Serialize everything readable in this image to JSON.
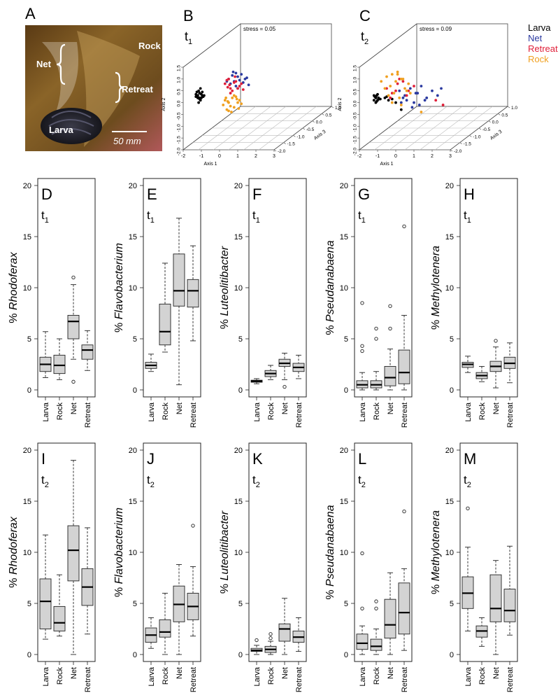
{
  "panel_a": {
    "letter": "A",
    "labels": {
      "net": "Net",
      "rock": "Rock",
      "retreat": "Retreat",
      "larva": "Larva",
      "scale": "50 mm"
    }
  },
  "colors": {
    "Larva": "#000000",
    "Net": "#2b3aa0",
    "Retreat": "#e0203a",
    "Rock": "#f0a020"
  },
  "legend": [
    "Larva",
    "Net",
    "Retreat",
    "Rock"
  ],
  "chart_data": [
    {
      "type": "scatter",
      "panel": "B",
      "time": "t1",
      "annotation": "stress = 0.05",
      "xlabel": "Axis 1",
      "ylabel": "Axis 2",
      "zlabel": "Axis 3",
      "xlim": [
        -2,
        3
      ],
      "ylim": [
        -2,
        1.5
      ],
      "zlim": [
        -2,
        1
      ],
      "xticks": [
        "-2",
        "-1",
        "0",
        "1",
        "2",
        "3"
      ],
      "yticks": [
        "-2.0",
        "-1.5",
        "-1.0",
        "-0.5",
        "0.0",
        "0.5",
        "1.0",
        "1.5"
      ],
      "zticks": [
        "-2.0",
        "-1.5",
        "-1.0",
        "-0.5",
        "0.0",
        "0.5",
        "1.0"
      ],
      "series": [
        {
          "name": "Larva",
          "x": [
            -1.2,
            -1.1,
            -1.0,
            -1.3,
            -0.9,
            -1.15,
            -1.05,
            -1.25,
            -0.95,
            -1.1,
            -1.2,
            -1.0,
            -1.3,
            -1.1,
            -0.85,
            -1.05,
            -1.15,
            -1.2,
            -0.95,
            -1.1
          ],
          "y": [
            0.3,
            0.4,
            0.2,
            0.35,
            0.25,
            0.5,
            0.1,
            0.45,
            0.3,
            0.15,
            0.2,
            0.35,
            0.25,
            0.4,
            0.3,
            0.6,
            0.0,
            0.3,
            0.45,
            0.2
          ]
        },
        {
          "name": "Net",
          "x": [
            0.5,
            0.8,
            1.0,
            1.2,
            0.6,
            0.9,
            1.4,
            1.1,
            0.7,
            1.3,
            0.4,
            1.5,
            0.9,
            1.0,
            1.6,
            0.75
          ],
          "y": [
            1.0,
            0.9,
            1.1,
            1.2,
            0.8,
            0.7,
            1.0,
            0.95,
            1.15,
            0.85,
            0.9,
            1.05,
            1.25,
            0.6,
            0.75,
            1.3
          ]
        },
        {
          "name": "Retreat",
          "x": [
            0.3,
            0.6,
            0.9,
            0.5,
            0.7,
            1.1,
            0.4,
            0.8,
            1.2,
            0.6,
            1.0,
            0.45,
            0.85,
            1.3,
            0.55
          ],
          "y": [
            0.8,
            0.6,
            0.9,
            1.0,
            0.5,
            0.7,
            0.95,
            0.85,
            0.8,
            0.4,
            0.6,
            0.65,
            1.1,
            0.55,
            0.75
          ]
        },
        {
          "name": "Rock",
          "x": [
            0.2,
            0.5,
            0.8,
            1.1,
            0.4,
            0.7,
            1.0,
            0.3,
            0.6,
            0.9,
            1.2,
            0.5,
            0.8,
            0.35,
            1.05,
            0.65,
            0.95,
            0.45
          ],
          "y": [
            -0.1,
            0.0,
            -0.2,
            0.1,
            -0.3,
            0.2,
            0.0,
            0.1,
            -0.15,
            0.25,
            -0.05,
            -0.35,
            0.3,
            0.2,
            -0.25,
            -0.4,
            0.15,
            0.05
          ]
        }
      ]
    },
    {
      "type": "scatter",
      "panel": "C",
      "time": "t2",
      "annotation": "stress = 0.09",
      "xlabel": "Axis 1",
      "ylabel": "Axis 2",
      "zlabel": "Axis 3",
      "xlim": [
        -2,
        3
      ],
      "ylim": [
        -2,
        1.5
      ],
      "zlim": [
        -2,
        1
      ],
      "xticks": [
        "-2",
        "-1",
        "0",
        "1",
        "2",
        "3"
      ],
      "yticks": [
        "-2.0",
        "-1.5",
        "-1.0",
        "-0.5",
        "0.0",
        "0.5",
        "1.0",
        "1.5"
      ],
      "zticks": [
        "-2.0",
        "-1.5",
        "-1.0",
        "-0.5",
        "0.0",
        "0.5",
        "1.0"
      ],
      "series": [
        {
          "name": "Larva",
          "x": [
            -1.1,
            -1.0,
            -1.2,
            -0.9,
            -1.05,
            -1.15,
            -0.95,
            -1.1,
            -1.0,
            -1.2,
            -0.85,
            -1.05,
            -0.6,
            -0.4,
            -0.2,
            0.0,
            0.3,
            -0.5
          ],
          "y": [
            0.2,
            0.1,
            0.3,
            0.15,
            0.05,
            0.25,
            0.2,
            0.0,
            0.35,
            0.1,
            0.15,
            0.3,
            0.2,
            0.1,
            0.15,
            0.0,
            -0.3,
            0.25
          ]
        },
        {
          "name": "Net",
          "x": [
            0.2,
            0.5,
            0.8,
            1.1,
            1.4,
            1.7,
            2.0,
            2.3,
            0.6,
            1.0,
            1.3,
            0.4,
            0.9,
            1.6,
            0.3,
            1.2,
            2.5
          ],
          "y": [
            0.5,
            0.3,
            0.6,
            0.4,
            0.7,
            0.2,
            0.5,
            0.3,
            0.1,
            0.0,
            -0.1,
            0.2,
            -0.2,
            0.1,
            0.0,
            0.4,
            0.6
          ]
        },
        {
          "name": "Retreat",
          "x": [
            -0.5,
            -0.2,
            0.1,
            0.4,
            0.7,
            1.0,
            -0.3,
            0.2,
            0.6,
            2.2,
            2.6,
            0.0
          ],
          "y": [
            0.6,
            0.4,
            0.8,
            0.9,
            0.5,
            0.7,
            0.2,
            1.0,
            0.3,
            0.1,
            -0.1,
            0.5
          ]
        },
        {
          "name": "Rock",
          "x": [
            -0.8,
            -0.5,
            -0.2,
            0.1,
            0.4,
            0.7,
            -0.6,
            -0.3,
            0.0,
            0.3,
            0.6,
            -0.4,
            -0.1,
            0.2,
            0.5,
            0.8,
            0.1,
            -0.2,
            0.3,
            1.4
          ],
          "y": [
            0.9,
            1.1,
            1.2,
            1.3,
            1.0,
            0.8,
            0.6,
            0.7,
            0.9,
            1.0,
            0.5,
            0.3,
            0.4,
            0.2,
            0.6,
            0.4,
            1.2,
            0.0,
            -0.1,
            -0.4
          ]
        }
      ]
    },
    {
      "type": "box",
      "panel": "D",
      "time": "t1",
      "ylabel": "Rhodoferax",
      "ylim": [
        0,
        20
      ],
      "yticks": [
        0,
        5,
        10,
        15,
        20
      ],
      "categories": [
        "Larva",
        "Rock",
        "Net",
        "Retreat"
      ],
      "boxes": [
        {
          "lw": 1.2,
          "q1": 1.8,
          "med": 2.5,
          "q3": 3.2,
          "uw": 5.7,
          "out": []
        },
        {
          "lw": 1.0,
          "q1": 1.6,
          "med": 2.4,
          "q3": 3.4,
          "uw": 5.0,
          "out": []
        },
        {
          "lw": 3.0,
          "q1": 5.0,
          "med": 6.7,
          "q3": 7.3,
          "uw": 10.3,
          "out": [
            11.0,
            0.8
          ]
        },
        {
          "lw": 1.9,
          "q1": 3.0,
          "med": 3.9,
          "q3": 4.4,
          "uw": 5.8,
          "out": []
        }
      ]
    },
    {
      "type": "box",
      "panel": "E",
      "time": "t1",
      "ylabel": "Flavobacterium",
      "ylim": [
        0,
        20
      ],
      "yticks": [
        0,
        5,
        10,
        15,
        20
      ],
      "categories": [
        "Larva",
        "Rock",
        "Net",
        "Retreat"
      ],
      "boxes": [
        {
          "lw": 1.8,
          "q1": 2.1,
          "med": 2.4,
          "q3": 2.7,
          "uw": 3.5,
          "out": []
        },
        {
          "lw": 3.7,
          "q1": 4.4,
          "med": 5.7,
          "q3": 8.4,
          "uw": 12.4,
          "out": []
        },
        {
          "lw": 0.5,
          "q1": 8.2,
          "med": 9.7,
          "q3": 13.3,
          "uw": 16.8,
          "out": []
        },
        {
          "lw": 4.8,
          "q1": 8.1,
          "med": 9.7,
          "q3": 10.8,
          "uw": 14.1,
          "out": []
        }
      ]
    },
    {
      "type": "box",
      "panel": "F",
      "time": "t1",
      "ylabel": "Luteolitibacter",
      "ylim": [
        0,
        20
      ],
      "yticks": [
        0,
        5,
        10,
        15,
        20
      ],
      "categories": [
        "Larva",
        "Rock",
        "Net",
        "Retreat"
      ],
      "boxes": [
        {
          "lw": 0.6,
          "q1": 0.75,
          "med": 0.85,
          "q3": 0.95,
          "uw": 1.1,
          "out": []
        },
        {
          "lw": 1.0,
          "q1": 1.3,
          "med": 1.6,
          "q3": 1.9,
          "uw": 2.4,
          "out": []
        },
        {
          "lw": 1.0,
          "q1": 2.3,
          "med": 2.6,
          "q3": 3.0,
          "uw": 3.6,
          "out": [
            0.3
          ]
        },
        {
          "lw": 1.1,
          "q1": 1.8,
          "med": 2.2,
          "q3": 2.6,
          "uw": 3.4,
          "out": []
        }
      ]
    },
    {
      "type": "box",
      "panel": "G",
      "time": "t1",
      "ylabel": "Pseudanabaena",
      "ylim": [
        0,
        20
      ],
      "yticks": [
        0,
        5,
        10,
        15,
        20
      ],
      "categories": [
        "Larva",
        "Rock",
        "Net",
        "Retreat"
      ],
      "boxes": [
        {
          "lw": 0.0,
          "q1": 0.2,
          "med": 0.5,
          "q3": 0.9,
          "uw": 1.7,
          "out": [
            3.8,
            4.3,
            8.5
          ]
        },
        {
          "lw": 0.0,
          "q1": 0.2,
          "med": 0.5,
          "q3": 0.9,
          "uw": 1.8,
          "out": [
            5.0,
            6.0
          ]
        },
        {
          "lw": 0.0,
          "q1": 0.4,
          "med": 1.2,
          "q3": 2.3,
          "uw": 4.0,
          "out": [
            6.0,
            8.2
          ]
        },
        {
          "lw": 0.0,
          "q1": 0.6,
          "med": 1.7,
          "q3": 3.9,
          "uw": 7.3,
          "out": [
            16.0
          ]
        }
      ]
    },
    {
      "type": "box",
      "panel": "H",
      "time": "t1",
      "ylabel": "Methylotenera",
      "ylim": [
        0,
        20
      ],
      "yticks": [
        0,
        5,
        10,
        15,
        20
      ],
      "categories": [
        "Larva",
        "Rock",
        "Net",
        "Retreat"
      ],
      "boxes": [
        {
          "lw": 1.7,
          "q1": 2.2,
          "med": 2.5,
          "q3": 2.7,
          "uw": 3.3,
          "out": []
        },
        {
          "lw": 0.8,
          "q1": 1.1,
          "med": 1.4,
          "q3": 1.7,
          "uw": 2.3,
          "out": []
        },
        {
          "lw": 0.2,
          "q1": 1.8,
          "med": 2.3,
          "q3": 2.8,
          "uw": 4.2,
          "out": [
            4.8
          ]
        },
        {
          "lw": 0.7,
          "q1": 2.1,
          "med": 2.6,
          "q3": 3.2,
          "uw": 4.6,
          "out": []
        }
      ]
    },
    {
      "type": "box",
      "panel": "I",
      "time": "t2",
      "ylabel": "Rhodoferax",
      "ylim": [
        0,
        20
      ],
      "yticks": [
        0,
        5,
        10,
        15,
        20
      ],
      "categories": [
        "Larva",
        "Rock",
        "Net",
        "Retreat"
      ],
      "boxes": [
        {
          "lw": 1.5,
          "q1": 2.5,
          "med": 5.2,
          "q3": 7.4,
          "uw": 11.7,
          "out": []
        },
        {
          "lw": 1.8,
          "q1": 2.3,
          "med": 3.1,
          "q3": 4.7,
          "uw": 7.8,
          "out": []
        },
        {
          "lw": 0.0,
          "q1": 7.2,
          "med": 10.2,
          "q3": 12.6,
          "uw": 19.0,
          "out": []
        },
        {
          "lw": 2.0,
          "q1": 4.8,
          "med": 6.6,
          "q3": 8.4,
          "uw": 12.4,
          "out": []
        }
      ]
    },
    {
      "type": "box",
      "panel": "J",
      "time": "t2",
      "ylabel": "Flavobacterium",
      "ylim": [
        0,
        20
      ],
      "yticks": [
        0,
        5,
        10,
        15,
        20
      ],
      "categories": [
        "Larva",
        "Rock",
        "Net",
        "Retreat"
      ],
      "boxes": [
        {
          "lw": 0.6,
          "q1": 1.2,
          "med": 1.9,
          "q3": 2.6,
          "uw": 3.6,
          "out": []
        },
        {
          "lw": 0.0,
          "q1": 1.7,
          "med": 2.2,
          "q3": 3.4,
          "uw": 6.0,
          "out": []
        },
        {
          "lw": 0.0,
          "q1": 3.2,
          "med": 4.9,
          "q3": 6.7,
          "uw": 8.8,
          "out": []
        },
        {
          "lw": 1.8,
          "q1": 3.4,
          "med": 4.7,
          "q3": 6.0,
          "uw": 8.6,
          "out": [
            12.6
          ]
        }
      ]
    },
    {
      "type": "box",
      "panel": "K",
      "time": "t2",
      "ylabel": "Luteolitibacter",
      "ylim": [
        0,
        20
      ],
      "yticks": [
        0,
        5,
        10,
        15,
        20
      ],
      "categories": [
        "Larva",
        "Rock",
        "Net",
        "Retreat"
      ],
      "boxes": [
        {
          "lw": 0.0,
          "q1": 0.3,
          "med": 0.4,
          "q3": 0.6,
          "uw": 0.9,
          "out": [
            1.4
          ]
        },
        {
          "lw": 0.0,
          "q1": 0.2,
          "med": 0.5,
          "q3": 0.8,
          "uw": 1.3,
          "out": [
            1.6,
            2.0
          ]
        },
        {
          "lw": 0.0,
          "q1": 1.3,
          "med": 2.5,
          "q3": 3.0,
          "uw": 5.5,
          "out": []
        },
        {
          "lw": 0.3,
          "q1": 1.2,
          "med": 1.7,
          "q3": 2.3,
          "uw": 3.6,
          "out": []
        }
      ]
    },
    {
      "type": "box",
      "panel": "L",
      "time": "t2",
      "ylabel": "Pseudanabaena",
      "ylim": [
        0,
        20
      ],
      "yticks": [
        0,
        5,
        10,
        15,
        20
      ],
      "categories": [
        "Larva",
        "Rock",
        "Net",
        "Retreat"
      ],
      "boxes": [
        {
          "lw": 0.0,
          "q1": 0.5,
          "med": 1.1,
          "q3": 2.0,
          "uw": 2.8,
          "out": [
            4.5,
            9.9
          ]
        },
        {
          "lw": 0.0,
          "q1": 0.4,
          "med": 0.8,
          "q3": 1.5,
          "uw": 2.5,
          "out": [
            4.5,
            5.2
          ]
        },
        {
          "lw": 0.0,
          "q1": 1.6,
          "med": 2.9,
          "q3": 5.4,
          "uw": 8.0,
          "out": []
        },
        {
          "lw": 0.4,
          "q1": 2.0,
          "med": 4.1,
          "q3": 7.0,
          "uw": 8.4,
          "out": [
            14.0
          ]
        }
      ]
    },
    {
      "type": "box",
      "panel": "M",
      "time": "t2",
      "ylabel": "Methylotenera",
      "ylim": [
        0,
        20
      ],
      "yticks": [
        0,
        5,
        10,
        15,
        20
      ],
      "categories": [
        "Larva",
        "Rock",
        "Net",
        "Retreat"
      ],
      "boxes": [
        {
          "lw": 2.3,
          "q1": 4.5,
          "med": 6.0,
          "q3": 7.6,
          "uw": 10.5,
          "out": [
            14.3
          ]
        },
        {
          "lw": 0.8,
          "q1": 1.7,
          "med": 2.3,
          "q3": 2.8,
          "uw": 3.6,
          "out": []
        },
        {
          "lw": 0.0,
          "q1": 3.2,
          "med": 4.5,
          "q3": 7.8,
          "uw": 9.2,
          "out": []
        },
        {
          "lw": 1.9,
          "q1": 3.2,
          "med": 4.3,
          "q3": 6.4,
          "uw": 10.6,
          "out": []
        }
      ]
    }
  ]
}
